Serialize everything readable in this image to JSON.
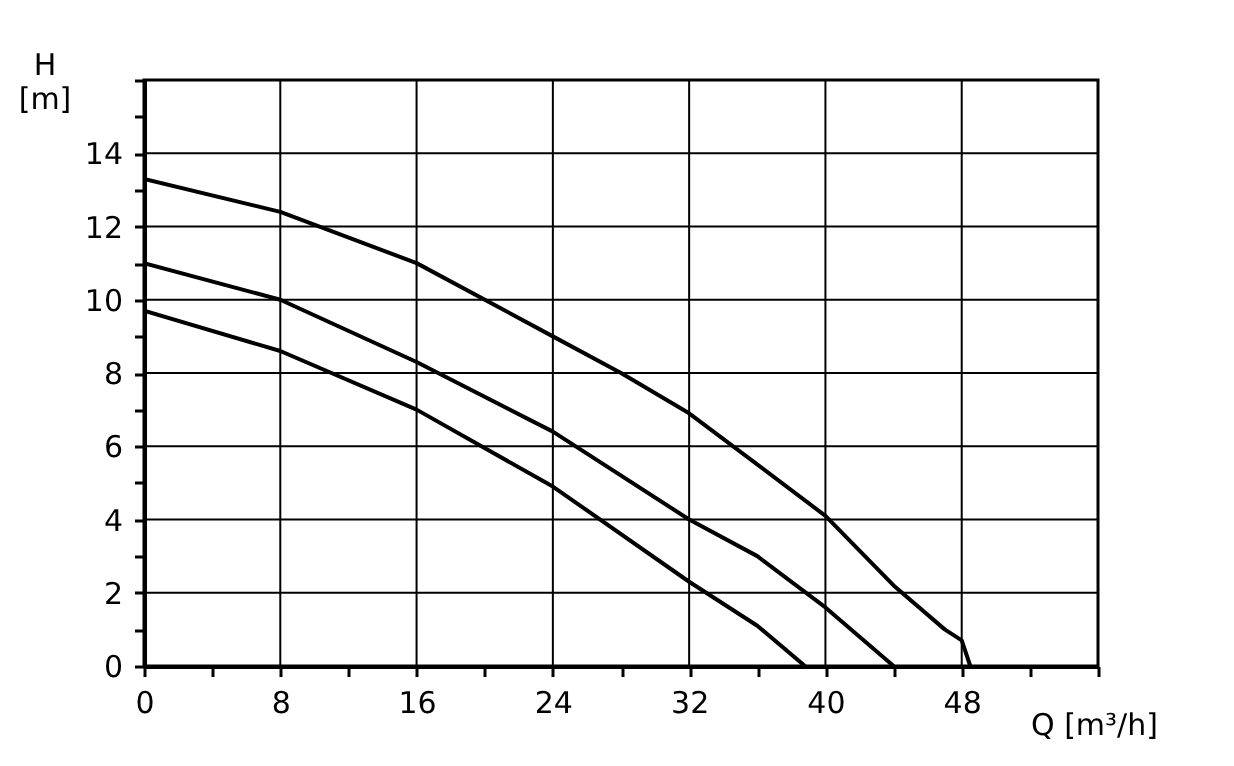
{
  "chart_data": {
    "type": "line",
    "xlabel": "Q [m³/h]",
    "ylabel": "H [m]",
    "xlim": [
      0,
      56
    ],
    "ylim": [
      0,
      16
    ],
    "xticks": [
      0,
      {
        "value": 4,
        "label": null
      },
      8,
      {
        "value": 12,
        "label": null
      },
      16,
      {
        "value": 20,
        "label": null
      },
      24,
      {
        "value": 28,
        "label": null
      },
      32,
      {
        "value": 36,
        "label": null
      },
      40,
      {
        "value": 44,
        "label": null
      },
      48,
      {
        "value": 52,
        "label": null
      },
      {
        "value": 56,
        "label": null
      }
    ],
    "yticks": [
      0,
      {
        "value": 1,
        "label": null
      },
      2,
      {
        "value": 3,
        "label": null
      },
      4,
      {
        "value": 5,
        "label": null
      },
      6,
      {
        "value": 7,
        "label": null
      },
      8,
      {
        "value": 9,
        "label": null
      },
      10,
      {
        "value": 11,
        "label": null
      },
      12,
      {
        "value": 13,
        "label": null
      },
      14,
      {
        "value": 15,
        "label": null
      },
      {
        "value": 16,
        "label": null
      }
    ],
    "grid": true,
    "marker": "none",
    "line_style": "solid",
    "series": [
      {
        "color": "#000000",
        "x": [
          0,
          8,
          16,
          24,
          28,
          32,
          40,
          44,
          47,
          48,
          48.5
        ],
        "values": [
          13.3,
          12.4,
          11.0,
          9.0,
          8.0,
          6.9,
          4.1,
          2.2,
          1.0,
          0.7,
          0
        ]
      },
      {
        "color": "#000000",
        "x": [
          0,
          8,
          16,
          24,
          32,
          36,
          40,
          44
        ],
        "values": [
          11.0,
          10.0,
          8.3,
          6.4,
          4.0,
          3.0,
          1.6,
          0
        ]
      },
      {
        "color": "#000000",
        "x": [
          0,
          8,
          16,
          24,
          32,
          36,
          38.8
        ],
        "values": [
          9.7,
          8.6,
          7.0,
          4.9,
          2.3,
          1.1,
          0
        ]
      }
    ]
  }
}
